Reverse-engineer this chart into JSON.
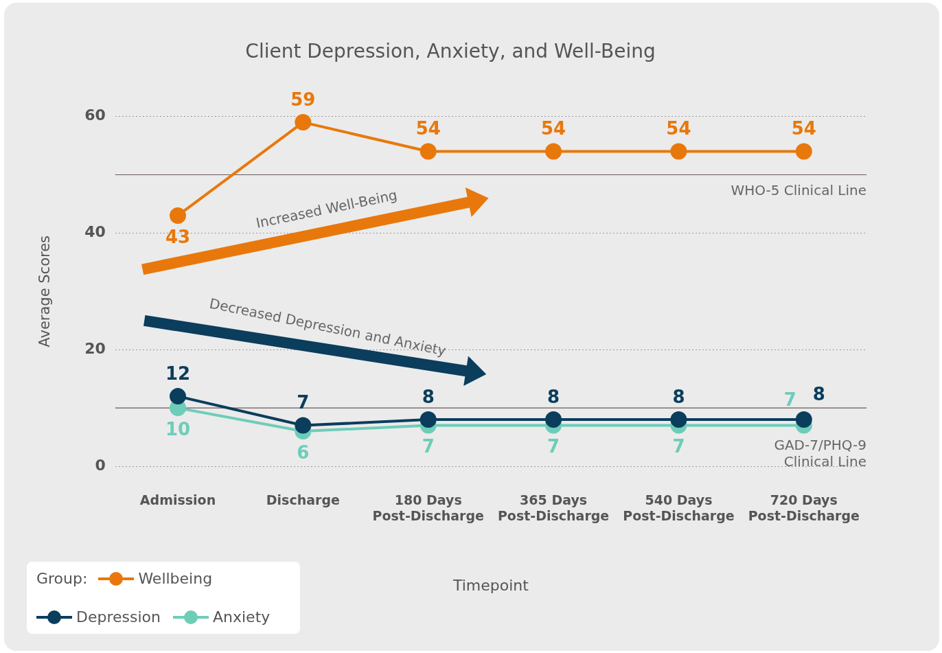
{
  "chart_data": {
    "type": "line",
    "title": "Client Depression, Anxiety, and Well-Being",
    "xlabel": "Timepoint",
    "ylabel": "Average Scores",
    "legend_title": "Group:",
    "categories": [
      "Admission",
      "Discharge",
      "180 Days\nPost-Discharge",
      "365 Days\nPost-Discharge",
      "540 Days\nPost-Discharge",
      "720 Days\nPost-Discharge"
    ],
    "series": [
      {
        "name": "Wellbeing",
        "color": "#e8780c",
        "values": [
          43,
          59,
          54,
          54,
          54,
          54
        ]
      },
      {
        "name": "Depression",
        "color": "#0b3d5c",
        "values": [
          12,
          7,
          8,
          8,
          8,
          8
        ]
      },
      {
        "name": "Anxiety",
        "color": "#6dcdb8",
        "values": [
          10,
          6,
          7,
          7,
          7,
          7
        ]
      }
    ],
    "ylim": [
      0,
      60
    ],
    "yticks": [
      0,
      20,
      40,
      60
    ],
    "grid": "y",
    "legend": "bottom left",
    "marker": "circle",
    "line_style": "solid",
    "data_labels": true,
    "ref_lines": [
      {
        "axis": "y",
        "value": 50,
        "label": "WHO-5 Clinical Line",
        "color": "#6b5a5a"
      },
      {
        "axis": "y",
        "value": 10,
        "label": "GAD-7/PHQ-9\nClinical Line",
        "color": "#6b5a5a"
      }
    ],
    "annotations": [
      "Increased Well-Being",
      "Decreased Depression and Anxiety"
    ]
  }
}
